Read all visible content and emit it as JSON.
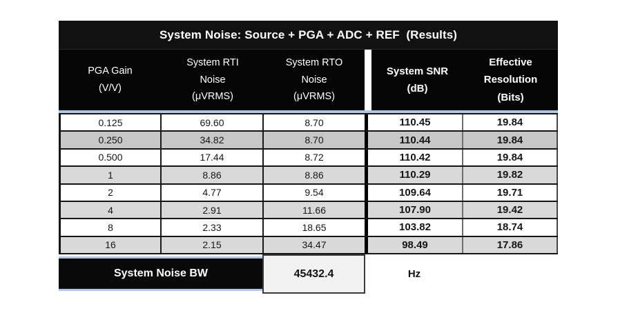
{
  "title": "System Noise: Source + PGA + ADC + REF  (Results)",
  "header": {
    "pga_gain": "PGA Gain\n(V/V)",
    "rti_noise": "System RTI\nNoise\n(μVRMS)",
    "rto_noise": "System RTO\nNoise\n(μVRMS)",
    "snr": "System SNR\n(dB)",
    "resolution": "Effective\nResolution\n(Bits)"
  },
  "table": {
    "rows": [
      {
        "cells": [
          "0.125",
          "69.60",
          "8.70",
          "110.45",
          "19.84"
        ]
      },
      {
        "cells": [
          "0.250",
          "34.82",
          "8.70",
          "110.44",
          "19.84"
        ]
      },
      {
        "cells": [
          "0.500",
          "17.44",
          "8.72",
          "110.42",
          "19.84"
        ]
      },
      {
        "cells": [
          "1",
          "8.86",
          "8.86",
          "110.29",
          "19.82"
        ]
      },
      {
        "cells": [
          "2",
          "4.77",
          "9.54",
          "109.64",
          "19.71"
        ]
      },
      {
        "cells": [
          "4",
          "2.91",
          "11.66",
          "107.90",
          "19.42"
        ]
      },
      {
        "cells": [
          "8",
          "2.33",
          "18.65",
          "103.82",
          "18.74"
        ]
      },
      {
        "cells": [
          "16",
          "2.15",
          "34.47",
          "98.49",
          "17.86"
        ]
      }
    ]
  },
  "footer": {
    "label": "System Noise BW",
    "value": "45432.4",
    "unit": "Hz"
  },
  "colors": {
    "accent_blue": "#aec6e8",
    "row_gray_dark": "#c7c7c7",
    "row_gray_light": "#d9d9d9",
    "header_bg": "#060606",
    "value_box_bg": "#f2f2f2"
  }
}
